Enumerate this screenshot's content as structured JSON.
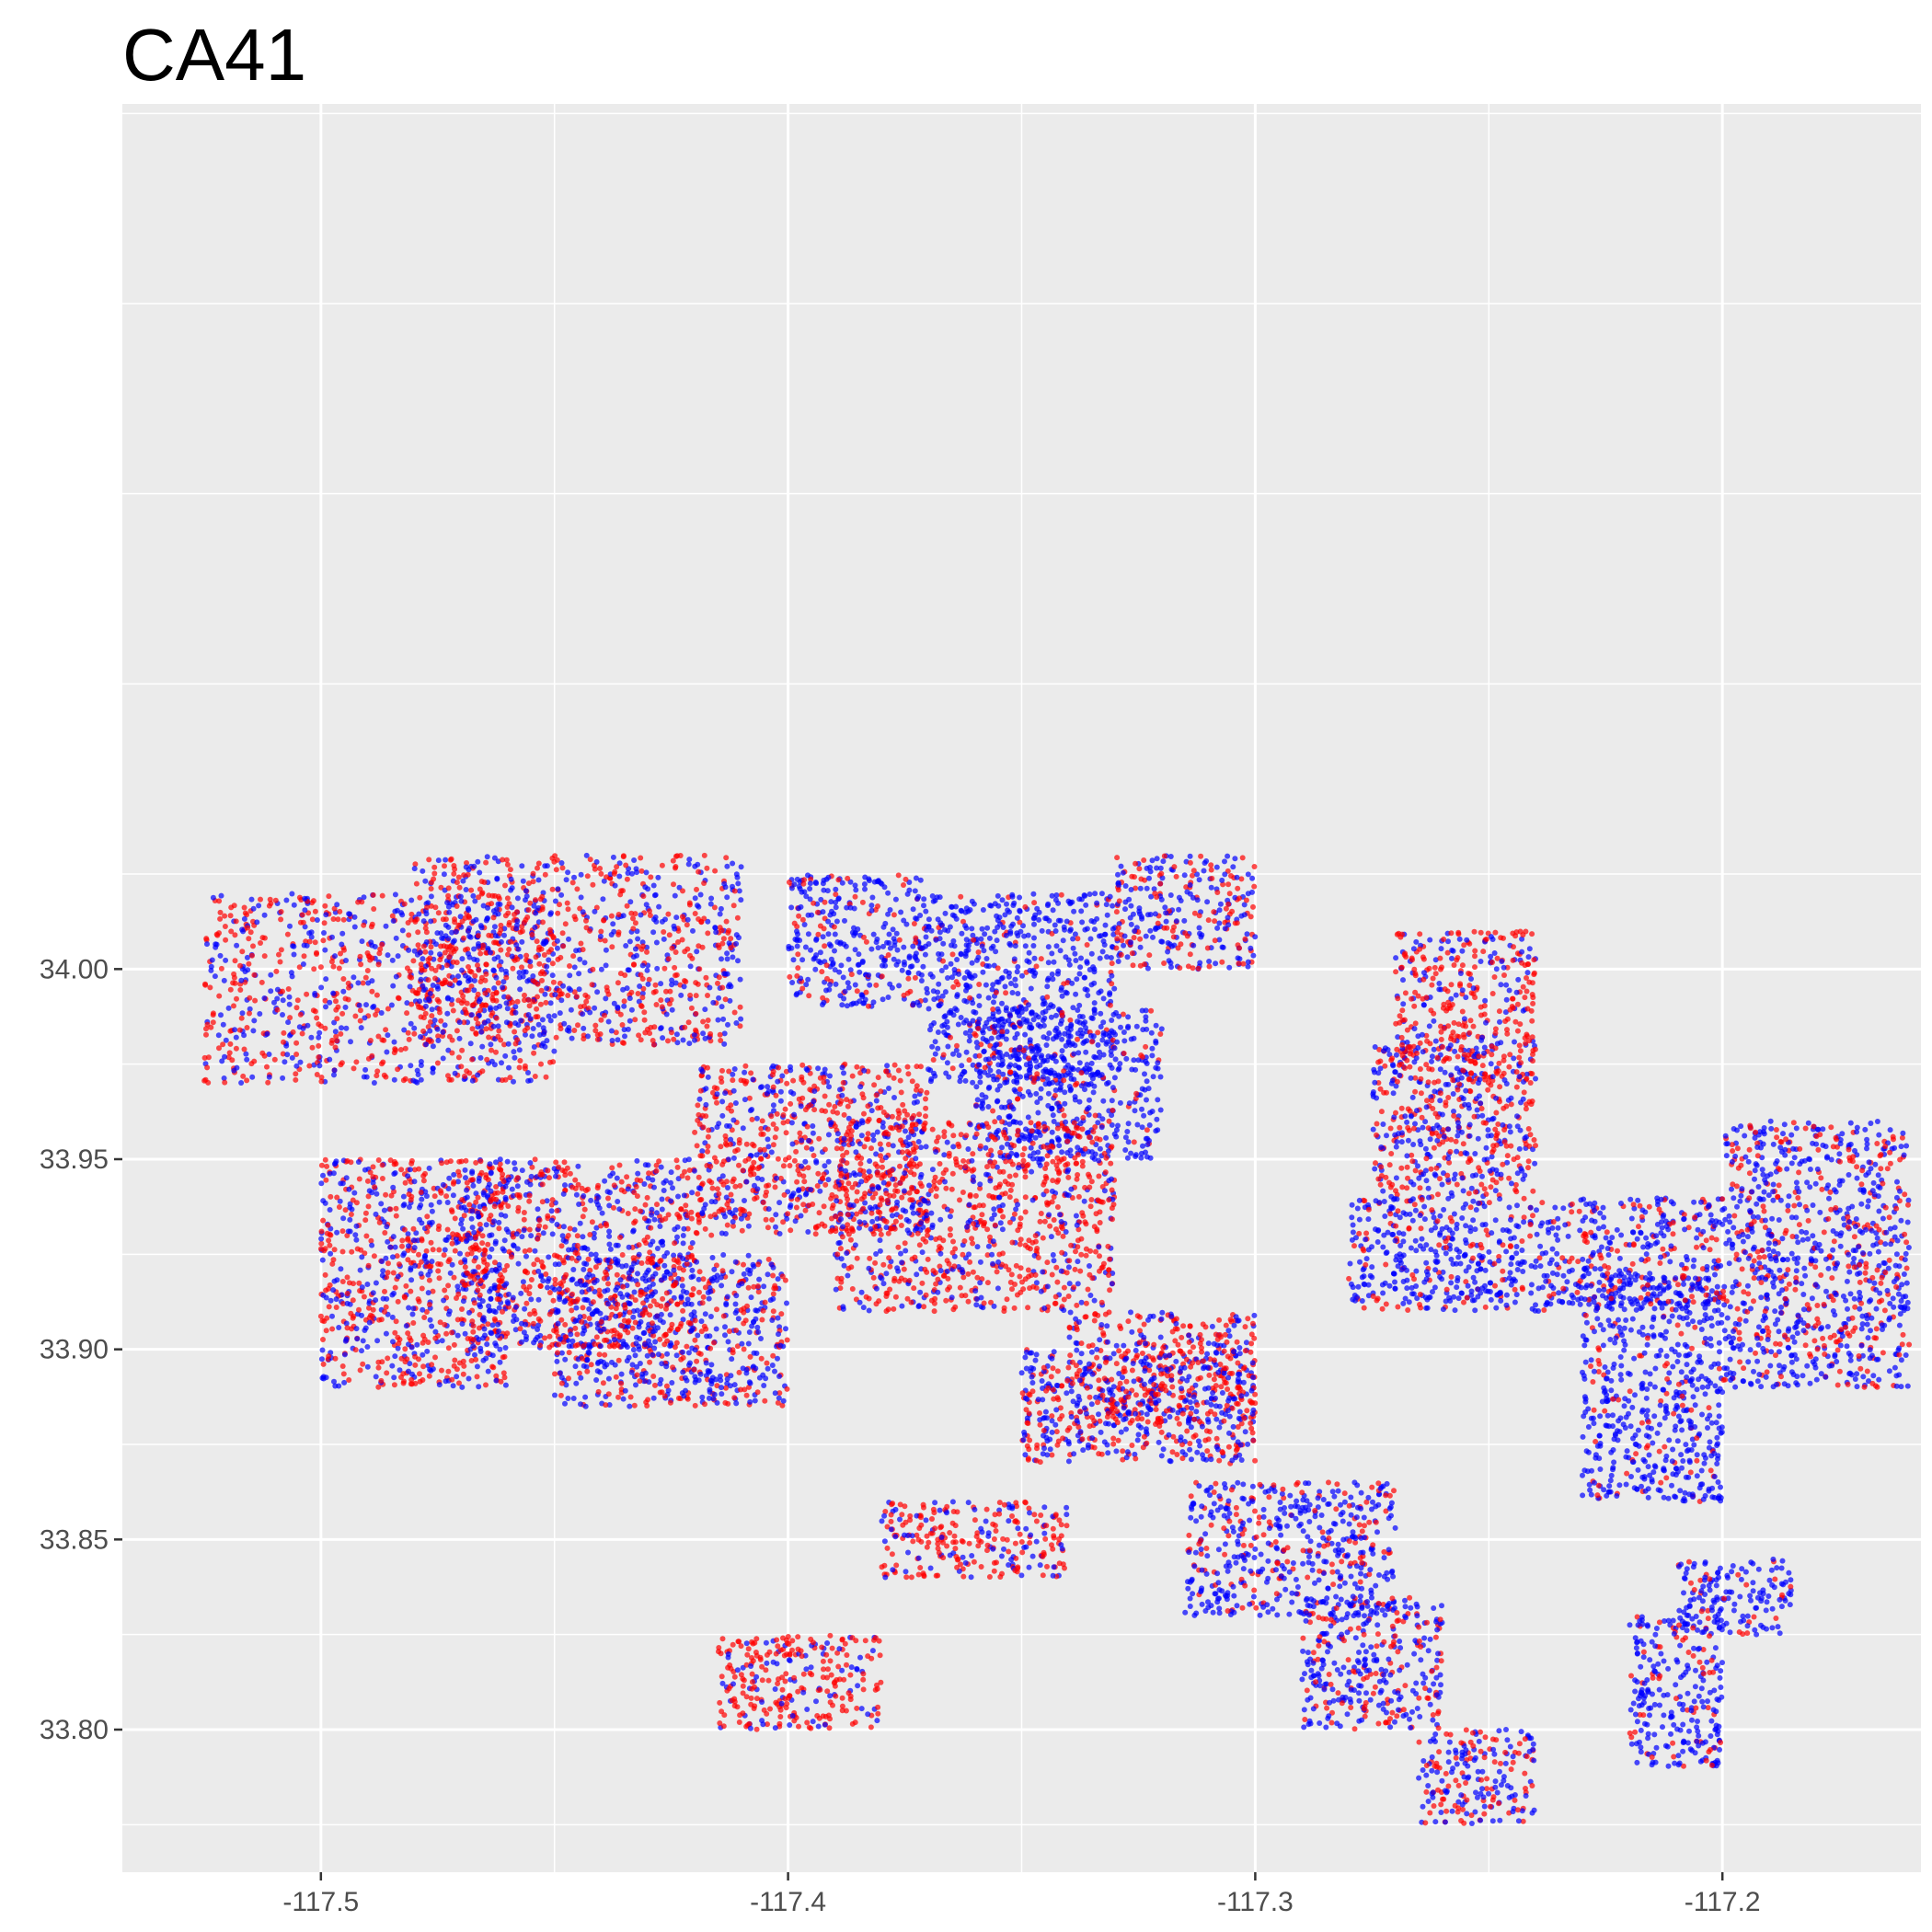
{
  "chart_data": {
    "type": "scatter",
    "title": "CA41",
    "xlabel": "",
    "ylabel": "",
    "xlim": [
      -117.5425,
      -117.1575
    ],
    "ylim": [
      33.7625,
      34.2275
    ],
    "x_ticks": [
      -117.5,
      -117.4,
      -117.3,
      -117.2
    ],
    "x_tick_labels": [
      "-117.5",
      "-117.4",
      "-117.3",
      "-117.2"
    ],
    "y_ticks": [
      33.8,
      33.85,
      33.9,
      33.95,
      34.0
    ],
    "y_tick_labels": [
      "33.80",
      "33.85",
      "33.90",
      "33.95",
      "34.00"
    ],
    "grid": true,
    "legend": "none",
    "colors": {
      "panel_background": "#ebebeb",
      "grid_line": "#ffffff",
      "series_red": "#ff0000",
      "series_blue": "#0000ff"
    },
    "point_color_series": [
      "red",
      "blue"
    ],
    "clusters": [
      {
        "x": [
          -117.525,
          -117.45
        ],
        "y": [
          33.97,
          34.02
        ],
        "mix": 0.55
      },
      {
        "x": [
          -117.48,
          -117.41
        ],
        "y": [
          33.98,
          34.03
        ],
        "mix": 0.55
      },
      {
        "x": [
          -117.4,
          -117.37
        ],
        "y": [
          33.99,
          34.025
        ],
        "mix": 0.2
      },
      {
        "x": [
          -117.37,
          -117.33
        ],
        "y": [
          33.97,
          34.02
        ],
        "mix": 0.15
      },
      {
        "x": [
          -117.33,
          -117.3
        ],
        "y": [
          34.0,
          34.03
        ],
        "mix": 0.45
      },
      {
        "x": [
          -117.36,
          -117.32
        ],
        "y": [
          33.95,
          33.99
        ],
        "mix": 0.15
      },
      {
        "x": [
          -117.5,
          -117.46
        ],
        "y": [
          33.89,
          33.95
        ],
        "mix": 0.55
      },
      {
        "x": [
          -117.47,
          -117.42
        ],
        "y": [
          33.9,
          33.95
        ],
        "mix": 0.45
      },
      {
        "x": [
          -117.42,
          -117.37
        ],
        "y": [
          33.93,
          33.975
        ],
        "mix": 0.6
      },
      {
        "x": [
          -117.39,
          -117.33
        ],
        "y": [
          33.91,
          33.96
        ],
        "mix": 0.65
      },
      {
        "x": [
          -117.45,
          -117.4
        ],
        "y": [
          33.885,
          33.925
        ],
        "mix": 0.4
      },
      {
        "x": [
          -117.34,
          -117.3
        ],
        "y": [
          33.88,
          33.91
        ],
        "mix": 0.6
      },
      {
        "x": [
          -117.35,
          -117.3
        ],
        "y": [
          33.87,
          33.9
        ],
        "mix": 0.45
      },
      {
        "x": [
          -117.275,
          -117.24
        ],
        "y": [
          33.94,
          33.98
        ],
        "mix": 0.5
      },
      {
        "x": [
          -117.28,
          -117.2
        ],
        "y": [
          33.91,
          33.94
        ],
        "mix": 0.25
      },
      {
        "x": [
          -117.23,
          -117.2
        ],
        "y": [
          33.86,
          33.92
        ],
        "mix": 0.15
      },
      {
        "x": [
          -117.2,
          -117.16
        ],
        "y": [
          33.89,
          33.96
        ],
        "mix": 0.35
      },
      {
        "x": [
          -117.38,
          -117.34
        ],
        "y": [
          33.84,
          33.86
        ],
        "mix": 0.7
      },
      {
        "x": [
          -117.315,
          -117.27
        ],
        "y": [
          33.83,
          33.865
        ],
        "mix": 0.25
      },
      {
        "x": [
          -117.29,
          -117.26
        ],
        "y": [
          33.8,
          33.835
        ],
        "mix": 0.35
      },
      {
        "x": [
          -117.265,
          -117.24
        ],
        "y": [
          33.775,
          33.8
        ],
        "mix": 0.4
      },
      {
        "x": [
          -117.22,
          -117.2
        ],
        "y": [
          33.79,
          33.83
        ],
        "mix": 0.15
      },
      {
        "x": [
          -117.21,
          -117.185
        ],
        "y": [
          33.825,
          33.845
        ],
        "mix": 0.15
      },
      {
        "x": [
          -117.415,
          -117.38
        ],
        "y": [
          33.8,
          33.825
        ],
        "mix": 0.7
      },
      {
        "x": [
          -117.27,
          -117.24
        ],
        "y": [
          33.97,
          34.01
        ],
        "mix": 0.7
      }
    ]
  }
}
